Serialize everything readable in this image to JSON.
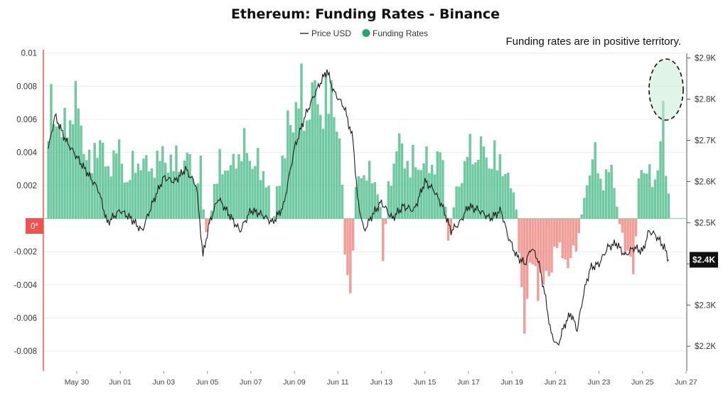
{
  "chart_data": {
    "type": "bar",
    "title": "Ethereum: Funding Rates - Binance",
    "annotation": "Funding rates are in positive territory.",
    "legend": {
      "placement": "top-center",
      "entries": [
        "Price USD",
        "Funding Rates"
      ]
    },
    "colors": {
      "positive": "#4ebd8b",
      "negative": "#ef8b84",
      "price": "#1a1a1a",
      "zero_marker": "#ef5350",
      "badge": "#111111",
      "highlight": "#c8ebd6"
    },
    "y_left": {
      "ylim": [
        -0.0092,
        0.0102
      ],
      "ticks": [
        0.01,
        0.008,
        0.006,
        0.004,
        0.002,
        -0.002,
        -0.004,
        -0.006,
        -0.008
      ],
      "tick_labels": [
        "0.01",
        "0.008",
        "0.006",
        "0.004",
        "0.002",
        "-0.002",
        "-0.004",
        "-0.006",
        "-0.008"
      ],
      "zero_label": "0*"
    },
    "y_right": {
      "ylim": [
        2.14,
        2.92
      ],
      "ticks": [
        2.9,
        2.8,
        2.7,
        2.6,
        2.5,
        2.4,
        2.3,
        2.2
      ],
      "tick_labels": [
        "$2.9K",
        "$2.8K",
        "$2.7K",
        "$2.6K",
        "$2.5K",
        "$2.4K",
        "$2.3K",
        "$2.2K"
      ],
      "current_label": "$2.4K",
      "current_value": 2.41
    },
    "x_axis": {
      "range": [
        -1.5,
        28.0
      ],
      "ticks": [
        0,
        2,
        4,
        6,
        8,
        10,
        12,
        14,
        16,
        18,
        20,
        22,
        24,
        26,
        28
      ],
      "tick_labels": [
        "May 30",
        "Jun 01",
        "Jun 03",
        "Jun 05",
        "Jun 07",
        "Jun 09",
        "Jun 11",
        "Jun 13",
        "Jun 15",
        "Jun 17",
        "Jun 19",
        "Jun 21",
        "Jun 23",
        "Jun 25",
        "Jun 27"
      ]
    },
    "funding_key_points": [
      [
        -1.3,
        0.0085
      ],
      [
        -1.0,
        0.0095
      ],
      [
        -0.7,
        0.006
      ],
      [
        -0.3,
        0.0095
      ],
      [
        0.2,
        0.008
      ],
      [
        0.6,
        0.004
      ],
      [
        1.0,
        0.007
      ],
      [
        1.4,
        0.0035
      ],
      [
        1.8,
        0.006
      ],
      [
        2.3,
        0.003
      ],
      [
        2.8,
        0.005
      ],
      [
        3.3,
        0.004
      ],
      [
        3.9,
        0.005
      ],
      [
        4.5,
        0.0045
      ],
      [
        5.0,
        0.005
      ],
      [
        5.4,
        0.0035
      ],
      [
        5.7,
        0.004
      ],
      [
        5.9,
        -0.0012
      ],
      [
        6.1,
        -0.0005
      ],
      [
        6.3,
        0.002
      ],
      [
        6.6,
        0.005
      ],
      [
        7.0,
        0.0035
      ],
      [
        7.5,
        0.006
      ],
      [
        8.0,
        0.005
      ],
      [
        8.5,
        0.004
      ],
      [
        8.8,
        0.003
      ],
      [
        9.0,
        -0.0012
      ],
      [
        9.2,
        0.0025
      ],
      [
        9.6,
        0.006
      ],
      [
        10.0,
        0.0095
      ],
      [
        10.5,
        0.0095
      ],
      [
        11.0,
        0.0095
      ],
      [
        11.5,
        0.0095
      ],
      [
        11.9,
        0.0095
      ],
      [
        12.2,
        0.003
      ],
      [
        12.4,
        -0.0055
      ],
      [
        12.6,
        -0.0075
      ],
      [
        12.8,
        0.002
      ],
      [
        13.2,
        0.0045
      ],
      [
        13.6,
        0.003
      ],
      [
        13.9,
        0.0025
      ],
      [
        14.1,
        -0.0035
      ],
      [
        14.3,
        0.0025
      ],
      [
        14.8,
        0.006
      ],
      [
        15.3,
        0.0045
      ],
      [
        15.8,
        0.0045
      ],
      [
        16.3,
        0.0045
      ],
      [
        16.8,
        0.005
      ],
      [
        17.1,
        -0.003
      ],
      [
        17.3,
        0.001
      ],
      [
        17.8,
        0.0045
      ],
      [
        18.3,
        0.006
      ],
      [
        18.8,
        0.005
      ],
      [
        19.2,
        0.005
      ],
      [
        19.7,
        0.004
      ],
      [
        20.2,
        0.001
      ],
      [
        20.4,
        -0.0055
      ],
      [
        20.6,
        -0.0078
      ],
      [
        20.8,
        -0.004
      ],
      [
        21.2,
        -0.005
      ],
      [
        21.6,
        -0.0055
      ],
      [
        22.0,
        -0.002
      ],
      [
        22.5,
        -0.0035
      ],
      [
        23.0,
        -0.0025
      ],
      [
        23.4,
        0.003
      ],
      [
        23.8,
        0.005
      ],
      [
        24.2,
        0.003
      ],
      [
        24.6,
        0.004
      ],
      [
        25.0,
        -0.001
      ],
      [
        25.3,
        -0.003
      ],
      [
        25.6,
        -0.0045
      ],
      [
        25.9,
        0.005
      ],
      [
        26.2,
        0.0045
      ],
      [
        26.5,
        0.002
      ],
      [
        26.9,
        0.0085
      ],
      [
        27.2,
        0.0018
      ]
    ],
    "price_key_points": [
      [
        -1.3,
        2.68
      ],
      [
        -1.0,
        2.76
      ],
      [
        -0.5,
        2.7
      ],
      [
        0.0,
        2.66
      ],
      [
        0.5,
        2.62
      ],
      [
        1.0,
        2.58
      ],
      [
        1.4,
        2.5
      ],
      [
        2.0,
        2.53
      ],
      [
        2.5,
        2.51
      ],
      [
        3.0,
        2.48
      ],
      [
        3.5,
        2.55
      ],
      [
        4.0,
        2.61
      ],
      [
        4.5,
        2.6
      ],
      [
        5.0,
        2.63
      ],
      [
        5.5,
        2.59
      ],
      [
        5.8,
        2.42
      ],
      [
        6.1,
        2.5
      ],
      [
        6.5,
        2.56
      ],
      [
        7.0,
        2.52
      ],
      [
        7.5,
        2.48
      ],
      [
        8.0,
        2.53
      ],
      [
        8.5,
        2.52
      ],
      [
        9.0,
        2.5
      ],
      [
        9.5,
        2.54
      ],
      [
        10.0,
        2.68
      ],
      [
        10.5,
        2.76
      ],
      [
        11.0,
        2.82
      ],
      [
        11.5,
        2.87
      ],
      [
        11.8,
        2.82
      ],
      [
        12.3,
        2.78
      ],
      [
        12.7,
        2.7
      ],
      [
        12.9,
        2.56
      ],
      [
        13.2,
        2.48
      ],
      [
        13.6,
        2.52
      ],
      [
        14.0,
        2.55
      ],
      [
        14.5,
        2.51
      ],
      [
        15.0,
        2.54
      ],
      [
        15.5,
        2.53
      ],
      [
        16.0,
        2.6
      ],
      [
        16.4,
        2.58
      ],
      [
        16.8,
        2.54
      ],
      [
        17.2,
        2.48
      ],
      [
        17.6,
        2.5
      ],
      [
        18.0,
        2.54
      ],
      [
        18.5,
        2.53
      ],
      [
        19.0,
        2.51
      ],
      [
        19.5,
        2.53
      ],
      [
        19.8,
        2.47
      ],
      [
        20.2,
        2.42
      ],
      [
        20.6,
        2.4
      ],
      [
        20.9,
        2.44
      ],
      [
        21.2,
        2.41
      ],
      [
        21.5,
        2.33
      ],
      [
        21.8,
        2.23
      ],
      [
        22.1,
        2.2
      ],
      [
        22.4,
        2.25
      ],
      [
        22.7,
        2.28
      ],
      [
        23.0,
        2.24
      ],
      [
        23.3,
        2.33
      ],
      [
        23.6,
        2.39
      ],
      [
        24.0,
        2.4
      ],
      [
        24.4,
        2.44
      ],
      [
        24.8,
        2.45
      ],
      [
        25.2,
        2.42
      ],
      [
        25.6,
        2.44
      ],
      [
        26.0,
        2.43
      ],
      [
        26.3,
        2.48
      ],
      [
        26.6,
        2.47
      ],
      [
        27.0,
        2.44
      ],
      [
        27.2,
        2.41
      ]
    ]
  }
}
